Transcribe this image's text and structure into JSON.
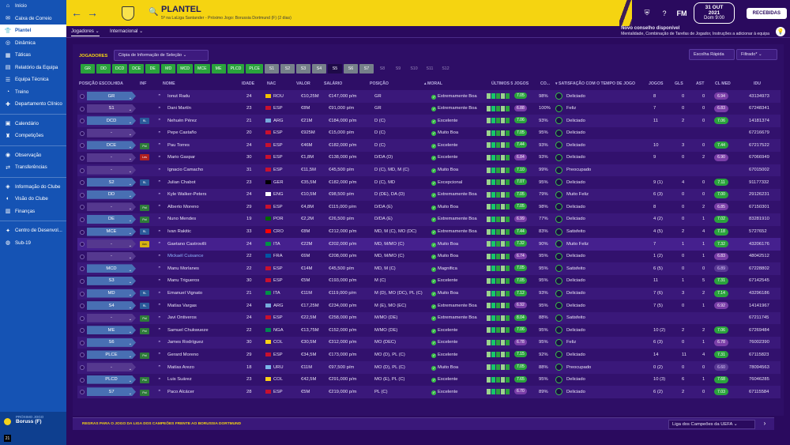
{
  "sidebar": {
    "items": [
      {
        "label": "Início",
        "icon": "home-icon",
        "glyph": "⌂"
      },
      {
        "label": "Caixa de Correio",
        "icon": "mail-icon",
        "glyph": "✉"
      },
      {
        "label": "Plantel",
        "icon": "shirt-icon",
        "glyph": "👕",
        "active": true
      },
      {
        "label": "Dinâmica",
        "icon": "dynamics-icon",
        "glyph": "◎"
      },
      {
        "label": "Táticas",
        "icon": "tactics-icon",
        "glyph": "▦"
      },
      {
        "label": "Relatório da Equipa",
        "icon": "report-icon",
        "glyph": "▤"
      },
      {
        "label": "Equipa Técnica",
        "icon": "staff-icon",
        "glyph": "☰"
      },
      {
        "label": "Treino",
        "icon": "training-icon",
        "glyph": "◔"
      },
      {
        "label": "Departamento Clínico",
        "icon": "medical-icon",
        "glyph": "✚"
      },
      {
        "sep": true
      },
      {
        "label": "Calendário",
        "icon": "calendar-icon",
        "glyph": "▣"
      },
      {
        "label": "Competições",
        "icon": "trophy-icon",
        "glyph": "♜"
      },
      {
        "sep": true
      },
      {
        "label": "Observação",
        "icon": "scouting-icon",
        "glyph": "◉"
      },
      {
        "label": "Transferências",
        "icon": "transfer-icon",
        "glyph": "⇄"
      },
      {
        "sep": true
      },
      {
        "label": "Informação do Clube",
        "icon": "club-info-icon",
        "glyph": "◈"
      },
      {
        "label": "Visão do Clube",
        "icon": "club-vision-icon",
        "glyph": "◐"
      },
      {
        "label": "Finanças",
        "icon": "finance-icon",
        "glyph": "▥"
      },
      {
        "sep": true
      },
      {
        "label": "Centro de Desenvol...",
        "icon": "development-icon",
        "glyph": "✦"
      },
      {
        "label": "Sub-19",
        "icon": "youth-icon",
        "glyph": "◍"
      }
    ],
    "next_game": {
      "label": "PRÓXIMO JOGO",
      "value": "Boruss (F)",
      "count": "21"
    }
  },
  "header": {
    "title": "PLANTEL",
    "subtitle": "5º na LaLiga Santander - Próximo Jogo: Borussia Dortmund (F) (2 dias)",
    "back": "←",
    "forward": "→",
    "search_glyph": "🔍",
    "date": "31 OUT 2021",
    "day": "Dom 9:00",
    "received": "RECEBIDAS",
    "brand": "FM"
  },
  "subbar": {
    "tab_players": "Jogadores ⌄",
    "tab_international": "Internacional ⌄"
  },
  "advice": {
    "title": "Novo conselho disponível",
    "text": "Mentalidade, Combinação de Tarefas de Jogador, Instruções a adicionar à equipa",
    "badge": "2"
  },
  "content": {
    "section_title": "JOGADORES",
    "copy_info": "Cópia de Informação de Seleção",
    "quick_choice": "Escolha Rápida",
    "filtered": "Filtrado*",
    "chips": [
      {
        "label": "GR",
        "s": "on"
      },
      {
        "label": "DD",
        "s": "on"
      },
      {
        "label": "DCD",
        "s": "on"
      },
      {
        "label": "DCE",
        "s": "on"
      },
      {
        "label": "DE",
        "s": "on"
      },
      {
        "label": "MD",
        "s": "on"
      },
      {
        "label": "MCD",
        "s": "on"
      },
      {
        "label": "MCE",
        "s": "on"
      },
      {
        "label": "ME",
        "s": "on"
      },
      {
        "label": "PLCD",
        "s": "on"
      },
      {
        "label": "PLCE",
        "s": "on"
      },
      {
        "label": "S1",
        "s": "gr"
      },
      {
        "label": "S2",
        "s": "gr"
      },
      {
        "label": "S3",
        "s": "gr"
      },
      {
        "label": "S4",
        "s": "gr"
      },
      {
        "label": "S5",
        "s": "dark"
      },
      {
        "label": "S6",
        "s": "gr"
      },
      {
        "label": "S7",
        "s": "gr"
      },
      {
        "label": "S8",
        "s": "off"
      },
      {
        "label": "S9",
        "s": "off"
      },
      {
        "label": "S10",
        "s": "off"
      },
      {
        "label": "S11",
        "s": "off"
      },
      {
        "label": "S12",
        "s": "off"
      }
    ],
    "columns": {
      "pos": "POSIÇÃO ESCOLHIDA",
      "inf": "INF",
      "name": "NOME",
      "age": "IDADE",
      "nat": "NAC",
      "value": "VALOR",
      "wage": "SALÁRIO",
      "position": "POSIÇÃO",
      "morale": "▴ MORAL",
      "last_games": "ÚLTIMOS 5 JOGOS",
      "co": "CO...",
      "satisfaction": "▾ SATISFAÇÃO COM O TEMPO DE JOGO",
      "games": "JOGOS",
      "goals": "GLS",
      "ast": "AST",
      "avg": "CL MED",
      "id": "IDU"
    },
    "rows": [
      {
        "pos": "GR",
        "posc": "#486fb3",
        "inf": "",
        "name": "Ionut Radu",
        "age": "24",
        "nat": "ROU",
        "flag": "#f2c200",
        "value": "€10,25M",
        "wage": "€147,000 p/m",
        "position": "GR",
        "morale": "Extremamente Boa",
        "form": "7.05",
        "fc": "hi",
        "cond": "98%",
        "sat": "Deliciado",
        "games": "8",
        "gls": "0",
        "ast": "0",
        "avg": "6.94",
        "avgc": "p",
        "id": "43134973"
      },
      {
        "pos": "S1",
        "posc": "#55388f",
        "inf": "",
        "name": "Dani Martín",
        "age": "23",
        "nat": "ESP",
        "flag": "#c8102e",
        "value": "€8M",
        "wage": "€91,000 p/m",
        "position": "GR",
        "morale": "Extremamente Boa",
        "form": "6.88",
        "fc": "mid",
        "cond": "100%",
        "sat": "Feliz",
        "games": "7",
        "gls": "0",
        "ast": "0",
        "avg": "6.83",
        "avgc": "p",
        "id": "67248341"
      },
      {
        "pos": "DCD",
        "posc": "#486fb3",
        "inf": "RL",
        "infc": "rl",
        "name": "Nehuén Pérez",
        "age": "21",
        "nat": "ARG",
        "flag": "#75aadb",
        "value": "€21M",
        "wage": "€184,000 p/m",
        "position": "D (C)",
        "morale": "Excelente",
        "form": "7.06",
        "fc": "hi",
        "cond": "93%",
        "sat": "Deliciado",
        "games": "11",
        "gls": "2",
        "ast": "0",
        "avg": "7.06",
        "avgc": "g",
        "id": "14181374"
      },
      {
        "pos": "-",
        "posc": "#55388f",
        "inf": "",
        "name": "Pepe Castaño",
        "age": "20",
        "nat": "ESP",
        "flag": "#c8102e",
        "value": "€925M",
        "wage": "€15,000 p/m",
        "position": "D (C)",
        "morale": "Muito Boa",
        "form": "7.05",
        "fc": "hi",
        "cond": "95%",
        "sat": "Deliciado",
        "games": "",
        "gls": "",
        "ast": "",
        "avg": "",
        "avgc": "",
        "id": "67216679"
      },
      {
        "pos": "DCE",
        "posc": "#486fb3",
        "inf": "Pct",
        "infc": "pct",
        "name": "Pau Torres",
        "age": "24",
        "nat": "ESP",
        "flag": "#c8102e",
        "value": "€46M",
        "wage": "€182,000 p/m",
        "position": "D (C)",
        "morale": "Excelente",
        "form": "7.44",
        "fc": "hi",
        "cond": "93%",
        "sat": "Deliciado",
        "games": "10",
        "gls": "3",
        "ast": "0",
        "avg": "7.44",
        "avgc": "g",
        "id": "67217522"
      },
      {
        "pos": "-",
        "posc": "#55388f",
        "inf": "Les",
        "infc": "les",
        "name": "Mario Gaspar",
        "age": "30",
        "nat": "ESP",
        "flag": "#c8102e",
        "value": "€1,8M",
        "wage": "€138,000 p/m",
        "position": "D/DA (D)",
        "morale": "Excelente",
        "form": "6.84",
        "fc": "mid",
        "cond": "93%",
        "sat": "Deliciado",
        "games": "9",
        "gls": "0",
        "ast": "2",
        "avg": "6.90",
        "avgc": "p",
        "id": "67066949"
      },
      {
        "pos": "-",
        "posc": "#55388f",
        "inf": "",
        "name": "Ignacio Camacho",
        "age": "31",
        "nat": "ESP",
        "flag": "#c8102e",
        "value": "€11,5M",
        "wage": "€45,500 p/m",
        "position": "D (C), MD, M (C)",
        "morale": "Muito Boa",
        "form": "7.10",
        "fc": "hi",
        "cond": "99%",
        "sat": "Preocupado",
        "games": "",
        "gls": "",
        "ast": "",
        "avg": "",
        "avgc": "",
        "id": "67015002"
      },
      {
        "pos": "S2",
        "posc": "#486fb3",
        "inf": "RL",
        "infc": "rl",
        "name": "Julian Chabot",
        "age": "23",
        "nat": "GER",
        "flag": "#000000",
        "value": "€35,5M",
        "wage": "€182,000 p/m",
        "position": "D (C), MD",
        "morale": "Excepcional",
        "form": "7.07",
        "fc": "hi",
        "cond": "95%",
        "sat": "Deliciado",
        "games": "9 (1)",
        "gls": "4",
        "ast": "0",
        "avg": "7.11",
        "avgc": "g",
        "id": "91177332"
      },
      {
        "pos": "DD",
        "posc": "#486fb3",
        "inf": "",
        "name": "Kyle Walker-Peters",
        "age": "24",
        "nat": "ENG",
        "flag": "#ffffff",
        "value": "€10,5M",
        "wage": "€98,500 p/m",
        "position": "D (DE), DA (D)",
        "morale": "Extremamente Boa",
        "form": "7.05",
        "fc": "hi",
        "cond": "79%",
        "sat": "Muito Feliz",
        "games": "6 (3)",
        "gls": "0",
        "ast": "0",
        "avg": "7.00",
        "avgc": "g",
        "id": "29126231"
      },
      {
        "pos": "-",
        "posc": "#55388f",
        "inf": "Pct",
        "infc": "pct",
        "name": "Alberto Moreno",
        "age": "29",
        "nat": "ESP",
        "flag": "#c8102e",
        "value": "€4,8M",
        "wage": "€115,000 p/m",
        "position": "D/DA (E)",
        "morale": "Muito Boa",
        "form": "7.05",
        "fc": "hi",
        "cond": "98%",
        "sat": "Deliciado",
        "games": "8",
        "gls": "0",
        "ast": "2",
        "avg": "6.85",
        "avgc": "p",
        "id": "67150301"
      },
      {
        "pos": "DE",
        "posc": "#486fb3",
        "inf": "Pct",
        "infc": "pct",
        "name": "Nuno Mendes",
        "age": "19",
        "nat": "POR",
        "flag": "#006600",
        "value": "€2,2M",
        "wage": "€26,500 p/m",
        "position": "D/DA (E)",
        "morale": "Extremamente Boa",
        "form": "6.99",
        "fc": "mid",
        "cond": "77%",
        "sat": "Deliciado",
        "games": "4 (2)",
        "gls": "0",
        "ast": "1",
        "avg": "7.02",
        "avgc": "g",
        "id": "83281910"
      },
      {
        "pos": "MCE",
        "posc": "#486fb3",
        "inf": "RL",
        "infc": "rl",
        "name": "Ivan Rakitic",
        "age": "33",
        "nat": "CRO",
        "flag": "#ff0000",
        "value": "€8M",
        "wage": "€212,000 p/m",
        "position": "MD, M (C), MO (DC)",
        "morale": "Extremamente Boa",
        "form": "7.44",
        "fc": "hi",
        "cond": "83%",
        "sat": "Satisfeito",
        "games": "4 (5)",
        "gls": "2",
        "ast": "4",
        "avg": "7.18",
        "avgc": "g",
        "id": "5727652"
      },
      {
        "pos": "-",
        "posc": "#55388f",
        "inf": "Aav",
        "infc": "aav",
        "name": "Gaetano Castrovilli",
        "age": "24",
        "nat": "ITA",
        "flag": "#009246",
        "value": "€22M",
        "wage": "€202,000 p/m",
        "position": "MD, M/MO (C)",
        "morale": "Muito Boa",
        "form": "7.32",
        "fc": "hi",
        "cond": "90%",
        "sat": "Muito Feliz",
        "games": "7",
        "gls": "1",
        "ast": "1",
        "avg": "7.32",
        "avgc": "g",
        "id": "43206176",
        "sel": true
      },
      {
        "pos": "-",
        "posc": "#55388f",
        "inf": "",
        "name": "Mickaël Cuisance",
        "age": "22",
        "nat": "FRA",
        "flag": "#0055a4",
        "value": "€6M",
        "wage": "€208,000 p/m",
        "position": "MD, M/MO (C)",
        "morale": "Muito Boa",
        "form": "6.74",
        "fc": "mid",
        "cond": "95%",
        "sat": "Deliciado",
        "games": "1 (2)",
        "gls": "0",
        "ast": "1",
        "avg": "6.83",
        "avgc": "p",
        "id": "48042512",
        "hl": true
      },
      {
        "pos": "MCD",
        "posc": "#486fb3",
        "inf": "",
        "name": "Manu Morlanes",
        "age": "22",
        "nat": "ESP",
        "flag": "#c8102e",
        "value": "€14M",
        "wage": "€45,500 p/m",
        "position": "MD, M (C)",
        "morale": "Magnifica",
        "form": "7.05",
        "fc": "hi",
        "cond": "95%",
        "sat": "Satisfeito",
        "games": "6 (5)",
        "gls": "0",
        "ast": "0",
        "avg": "6.89",
        "avgc": "d",
        "id": "67228802"
      },
      {
        "pos": "S3",
        "posc": "#486fb3",
        "inf": "",
        "name": "Manu Trigueros",
        "age": "30",
        "nat": "ESP",
        "flag": "#c8102e",
        "value": "€5M",
        "wage": "€193,000 p/m",
        "position": "M (C)",
        "morale": "Excelente",
        "form": "7.05",
        "fc": "hi",
        "cond": "95%",
        "sat": "Deliciado",
        "games": "11",
        "gls": "1",
        "ast": "5",
        "avg": "7.31",
        "avgc": "g",
        "id": "67142545"
      },
      {
        "pos": "MD",
        "posc": "#486fb3",
        "inf": "RL",
        "infc": "rl",
        "name": "Emanuel Vignato",
        "age": "21",
        "nat": "ITA",
        "flag": "#009246",
        "value": "€11M",
        "wage": "€119,000 p/m",
        "position": "M (D), MO (DC), PL (C)",
        "morale": "Muito Boa",
        "form": "7.12",
        "fc": "hi",
        "cond": "93%",
        "sat": "Deliciado",
        "games": "7 (6)",
        "gls": "3",
        "ast": "2",
        "avg": "7.14",
        "avgc": "g",
        "id": "43296186"
      },
      {
        "pos": "S4",
        "posc": "#486fb3",
        "inf": "RL",
        "infc": "rl",
        "name": "Matías Vargas",
        "age": "24",
        "nat": "ARG",
        "flag": "#75aadb",
        "value": "€17,25M",
        "wage": "€234,000 p/m",
        "position": "M (E), MO (EC)",
        "morale": "Extremamente Boa",
        "form": "6.92",
        "fc": "mid",
        "cond": "95%",
        "sat": "Deliciado",
        "games": "7 (5)",
        "gls": "0",
        "ast": "1",
        "avg": "6.92",
        "avgc": "p",
        "id": "14141967"
      },
      {
        "pos": "-",
        "posc": "#55388f",
        "inf": "Pct",
        "infc": "pct",
        "name": "Javi Ontiveros",
        "age": "24",
        "nat": "ESP",
        "flag": "#c8102e",
        "value": "€22,5M",
        "wage": "€258,000 p/m",
        "position": "M/MO (DE)",
        "morale": "Extremamente Boa",
        "form": "8.04",
        "fc": "hi",
        "cond": "88%",
        "sat": "Satisfeito",
        "games": "",
        "gls": "",
        "ast": "",
        "avg": "",
        "avgc": "",
        "id": "67211745"
      },
      {
        "pos": "ME",
        "posc": "#486fb3",
        "inf": "Pct",
        "infc": "pct",
        "name": "Samuel Chukwueze",
        "age": "22",
        "nat": "NGA",
        "flag": "#008751",
        "value": "€13,75M",
        "wage": "€152,000 p/m",
        "position": "M/MO (DE)",
        "morale": "Excelente",
        "form": "7.06",
        "fc": "hi",
        "cond": "95%",
        "sat": "Deliciado",
        "games": "10 (2)",
        "gls": "2",
        "ast": "2",
        "avg": "7.06",
        "avgc": "g",
        "id": "67269484"
      },
      {
        "pos": "S6",
        "posc": "#486fb3",
        "inf": "",
        "name": "James Rodríguez",
        "age": "30",
        "nat": "COL",
        "flag": "#fcd116",
        "value": "€30,5M",
        "wage": "€312,000 p/m",
        "position": "MO (DEC)",
        "morale": "Excelente",
        "form": "6.78",
        "fc": "mid",
        "cond": "95%",
        "sat": "Feliz",
        "games": "6 (3)",
        "gls": "0",
        "ast": "1",
        "avg": "6.78",
        "avgc": "p",
        "id": "76002390"
      },
      {
        "pos": "PLCE",
        "posc": "#486fb3",
        "inf": "Pct",
        "infc": "pct",
        "name": "Gerard Moreno",
        "age": "29",
        "nat": "ESP",
        "flag": "#c8102e",
        "value": "€34,5M",
        "wage": "€173,000 p/m",
        "position": "MO (D), PL (C)",
        "morale": "Excelente",
        "form": "7.15",
        "fc": "hi",
        "cond": "92%",
        "sat": "Deliciado",
        "games": "14",
        "gls": "11",
        "ast": "4",
        "avg": "7.31",
        "avgc": "g",
        "id": "67115823"
      },
      {
        "pos": "-",
        "posc": "#55388f",
        "inf": "",
        "name": "Matías Arezo",
        "age": "18",
        "nat": "URU",
        "flag": "#7bb6e8",
        "value": "€11M",
        "wage": "€97,500 p/m",
        "position": "MO (D), PL (C)",
        "morale": "Muito Boa",
        "form": "7.05",
        "fc": "hi",
        "cond": "88%",
        "sat": "Preocupado",
        "games": "0 (2)",
        "gls": "0",
        "ast": "0",
        "avg": "6.60",
        "avgc": "d",
        "id": "78094563"
      },
      {
        "pos": "PLCD",
        "posc": "#486fb3",
        "inf": "Pct",
        "infc": "pct",
        "name": "Luis Suárez",
        "age": "23",
        "nat": "COL",
        "flag": "#fcd116",
        "value": "€42,5M",
        "wage": "€291,000 p/m",
        "position": "MO (E), PL (C)",
        "morale": "Excelente",
        "form": "7.65",
        "fc": "hi",
        "cond": "95%",
        "sat": "Deliciado",
        "games": "10 (3)",
        "gls": "6",
        "ast": "1",
        "avg": "7.68",
        "avgc": "g",
        "id": "76046285"
      },
      {
        "pos": "S7",
        "posc": "#486fb3",
        "inf": "Pct",
        "infc": "pct",
        "name": "Paco Alcácer",
        "age": "28",
        "nat": "ESP",
        "flag": "#c8102e",
        "value": "€5M",
        "wage": "€219,000 p/m",
        "position": "PL (C)",
        "morale": "Excelente",
        "form": "6.70",
        "fc": "mid",
        "cond": "89%",
        "sat": "Deliciado",
        "games": "6 (2)",
        "gls": "2",
        "ast": "0",
        "avg": "7.03",
        "avgc": "g",
        "id": "67115584"
      }
    ]
  },
  "footer": {
    "rules": "REGRAS PARA O JOGO DA LIGA DOS CAMPEÕES FRENTE AO BORUSSIA DORTMUND",
    "competition": "Liga dos Campeões da UEFA",
    "next": "›"
  }
}
